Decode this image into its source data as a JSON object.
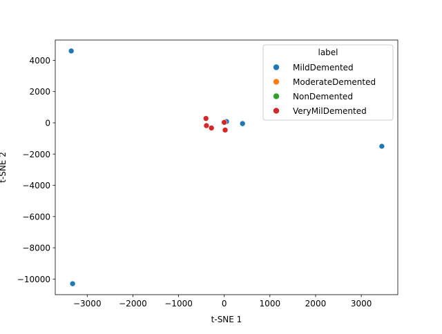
{
  "chart_data": {
    "type": "scatter",
    "title": "",
    "xlabel": "t-SNE 1",
    "ylabel": "t-SNE 2",
    "xlim": [
      -3700,
      3800
    ],
    "ylim": [
      -11000,
      5300
    ],
    "xticks": [
      -3000,
      -2000,
      -1000,
      0,
      1000,
      2000,
      3000
    ],
    "xtick_labels": [
      "−3000",
      "−2000",
      "−1000",
      "0",
      "1000",
      "2000",
      "3000"
    ],
    "yticks": [
      4000,
      2000,
      0,
      -2000,
      -4000,
      -6000,
      -8000,
      -10000
    ],
    "ytick_labels": [
      "4000",
      "2000",
      "0",
      "−2000",
      "−4000",
      "−6000",
      "−8000",
      "−10000"
    ],
    "grid": false,
    "legend": {
      "title": "label",
      "placement": "top-right"
    },
    "series": [
      {
        "name": "MildDemented",
        "color": "#1f77b4",
        "points": [
          {
            "x": -3350,
            "y": 4600
          },
          {
            "x": -3320,
            "y": -10300
          },
          {
            "x": 3450,
            "y": -1500
          },
          {
            "x": 400,
            "y": -50
          },
          {
            "x": 50,
            "y": 80
          }
        ]
      },
      {
        "name": "ModerateDemented",
        "color": "#ff7f0e",
        "points": []
      },
      {
        "name": "NonDemented",
        "color": "#2ca02c",
        "points": []
      },
      {
        "name": "VeryMilDemented",
        "color": "#d62728",
        "points": [
          {
            "x": -400,
            "y": 280
          },
          {
            "x": -390,
            "y": -180
          },
          {
            "x": -280,
            "y": -330
          },
          {
            "x": 0,
            "y": 30
          },
          {
            "x": 20,
            "y": -460
          }
        ]
      }
    ]
  }
}
